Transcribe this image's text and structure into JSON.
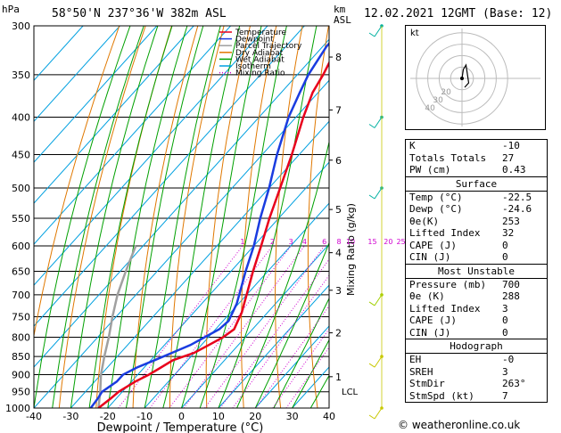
{
  "header": {
    "location": "58°50'N 237°36'W 382m ASL",
    "datetime": "12.02.2021 12GMT (Base: 12)",
    "hpa_label": "hPa",
    "km_label": "km",
    "asl_label": "ASL",
    "copyright": "© weatheronline.co.uk"
  },
  "legend": [
    {
      "label": "Temperature",
      "color": "#e8001c"
    },
    {
      "label": "Dewpoint",
      "color": "#1a3ce0"
    },
    {
      "label": "Parcel Trajectory",
      "color": "#a0a0a0"
    },
    {
      "label": "Dry Adiabat",
      "color": "#e07800"
    },
    {
      "label": "Wet Adiabat",
      "color": "#00a000"
    },
    {
      "label": "Isotherm",
      "color": "#00a0e0"
    },
    {
      "label": "Mixing Ratio",
      "color": "#d000d0"
    }
  ],
  "chart_data": {
    "type": "line",
    "xlabel": "Dewpoint / Temperature (°C)",
    "x_ticks": [
      -40,
      -30,
      -20,
      -10,
      0,
      10,
      20,
      30,
      40
    ],
    "pressure_ticks": [
      300,
      350,
      400,
      450,
      500,
      550,
      600,
      650,
      700,
      750,
      800,
      850,
      900,
      950,
      1000
    ],
    "height_ticks_km": [
      {
        "label": "1",
        "p": 906
      },
      {
        "label": "2",
        "p": 789
      },
      {
        "label": "3",
        "p": 690
      },
      {
        "label": "4",
        "p": 613
      },
      {
        "label": "5",
        "p": 535
      },
      {
        "label": "6",
        "p": 458
      },
      {
        "label": "7",
        "p": 391
      },
      {
        "label": "8",
        "p": 331
      }
    ],
    "lcl": {
      "label": "LCL",
      "p": 948
    },
    "mixing_ratio_label": "Mixing Ratio (g/kg)",
    "mixing_ratios": [
      1,
      2,
      3,
      4,
      6,
      8,
      10,
      15,
      20,
      25
    ],
    "series": [
      {
        "name": "Temperature",
        "color": "#e8001c",
        "points": [
          [
            1000,
            -22.5
          ],
          [
            970,
            -21.5
          ],
          [
            950,
            -21
          ],
          [
            920,
            -19
          ],
          [
            900,
            -17
          ],
          [
            880,
            -15.5
          ],
          [
            860,
            -14
          ],
          [
            840,
            -10
          ],
          [
            820,
            -8
          ],
          [
            800,
            -6
          ],
          [
            780,
            -5
          ],
          [
            760,
            -6
          ],
          [
            740,
            -7
          ],
          [
            720,
            -8.5
          ],
          [
            700,
            -10
          ],
          [
            650,
            -14
          ],
          [
            600,
            -18
          ],
          [
            550,
            -22.5
          ],
          [
            500,
            -27
          ],
          [
            450,
            -32
          ],
          [
            400,
            -38
          ],
          [
            370,
            -41.5
          ],
          [
            350,
            -43
          ],
          [
            320,
            -46
          ],
          [
            300,
            -47
          ]
        ]
      },
      {
        "name": "Dewpoint",
        "color": "#1a3ce0",
        "points": [
          [
            1000,
            -24.6
          ],
          [
            970,
            -25
          ],
          [
            950,
            -25.5
          ],
          [
            920,
            -24
          ],
          [
            900,
            -24
          ],
          [
            880,
            -22
          ],
          [
            860,
            -19
          ],
          [
            840,
            -16
          ],
          [
            820,
            -13
          ],
          [
            800,
            -11
          ],
          [
            780,
            -9
          ],
          [
            760,
            -8.5
          ],
          [
            740,
            -9.5
          ],
          [
            720,
            -10.5
          ],
          [
            700,
            -12
          ],
          [
            650,
            -16
          ],
          [
            600,
            -20
          ],
          [
            550,
            -25
          ],
          [
            500,
            -30
          ],
          [
            450,
            -36
          ],
          [
            400,
            -42
          ],
          [
            370,
            -45
          ],
          [
            350,
            -47
          ],
          [
            320,
            -49
          ],
          [
            300,
            -49
          ]
        ]
      }
    ],
    "parcel": [
      [
        1000,
        -22.5
      ],
      [
        950,
        -26
      ],
      [
        900,
        -30
      ],
      [
        850,
        -33.5
      ],
      [
        800,
        -37
      ],
      [
        750,
        -41
      ],
      [
        700,
        -45
      ],
      [
        650,
        -48.5
      ],
      [
        600,
        -52
      ]
    ],
    "wind_barbs_p": [
      300,
      400,
      500,
      700,
      850,
      1000
    ]
  },
  "stats": {
    "basic": [
      {
        "k": "K",
        "v": "-10"
      },
      {
        "k": "Totals Totals",
        "v": "27"
      },
      {
        "k": "PW (cm)",
        "v": "0.43"
      }
    ],
    "surface_title": "Surface",
    "surface": [
      {
        "k": "Temp (°C)",
        "v": "-22.5"
      },
      {
        "k": "Dewp (°C)",
        "v": "-24.6"
      },
      {
        "k": "θe(K)",
        "v": "253"
      },
      {
        "k": "Lifted Index",
        "v": "32"
      },
      {
        "k": "CAPE (J)",
        "v": "0"
      },
      {
        "k": "CIN (J)",
        "v": "0"
      }
    ],
    "unstable_title": "Most Unstable",
    "unstable": [
      {
        "k": "Pressure (mb)",
        "v": "700"
      },
      {
        "k": "θe (K)",
        "v": "288"
      },
      {
        "k": "Lifted Index",
        "v": "3"
      },
      {
        "k": "CAPE (J)",
        "v": "0"
      },
      {
        "k": "CIN (J)",
        "v": "0"
      }
    ],
    "hodo_title": "Hodograph",
    "hodo": [
      {
        "k": "EH",
        "v": "-0"
      },
      {
        "k": "SREH",
        "v": "3"
      },
      {
        "k": "StmDir",
        "v": "263°"
      },
      {
        "k": "StmSpd (kt)",
        "v": "7"
      }
    ]
  },
  "hodograph": {
    "label": "kt",
    "ring_labels": [
      "40",
      "30",
      "20"
    ],
    "points": [
      [
        0,
        0
      ],
      [
        1,
        2
      ],
      [
        3,
        3
      ],
      [
        5,
        -1
      ],
      [
        2,
        -2
      ]
    ]
  }
}
